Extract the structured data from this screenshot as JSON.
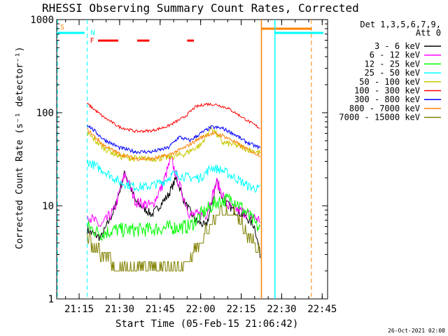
{
  "chart_data": {
    "type": "line",
    "title": "RHESSI Observing Summary Count Rates, Corrected",
    "xlabel": "Start Time (05-Feb-15 21:06:42)",
    "ylabel": "Corrected Count Rate (s⁻¹ detector⁻¹)",
    "y_scale": "log",
    "ylim": [
      1,
      1000
    ],
    "xlim": [
      "21:06:42",
      "22:47:00"
    ],
    "x_ticks": [
      "21:15",
      "21:30",
      "21:45",
      "22:00",
      "22:15",
      "22:30",
      "22:45"
    ],
    "y_ticks": [
      "1",
      "10",
      "100",
      "1000"
    ],
    "legend_header": [
      "Det 1,3,5,6,7,9,",
      "Att 0"
    ],
    "legend_position": "top-right",
    "footer": "26-Oct-2021 02:08",
    "flag_labels": {
      "saa": "S",
      "night": "N",
      "flare": "F"
    },
    "data_start": "21:18:00",
    "data_end": "22:22:00",
    "series": [
      {
        "name": "3 - 6 keV",
        "color": "#000000",
        "points": [
          [
            0,
            5.5
          ],
          [
            5,
            4.5
          ],
          [
            10,
            9
          ],
          [
            14,
            23
          ],
          [
            18,
            11
          ],
          [
            24,
            8
          ],
          [
            30,
            13
          ],
          [
            33,
            20
          ],
          [
            36,
            11
          ],
          [
            40,
            7
          ],
          [
            44,
            6
          ],
          [
            46,
            10
          ],
          [
            48,
            19
          ],
          [
            50,
            12
          ],
          [
            54,
            9
          ],
          [
            58,
            8
          ],
          [
            62,
            6
          ],
          [
            64,
            3
          ]
        ]
      },
      {
        "name": "6 - 12 keV",
        "color": "#ff00ff",
        "points": [
          [
            0,
            8
          ],
          [
            5,
            6
          ],
          [
            10,
            9
          ],
          [
            14,
            22
          ],
          [
            18,
            11
          ],
          [
            24,
            10
          ],
          [
            28,
            17
          ],
          [
            31,
            32
          ],
          [
            34,
            17
          ],
          [
            38,
            8
          ],
          [
            44,
            8
          ],
          [
            48,
            18
          ],
          [
            52,
            10
          ],
          [
            56,
            9
          ],
          [
            60,
            8
          ],
          [
            64,
            7
          ]
        ]
      },
      {
        "name": "12 - 25 keV",
        "color": "#00ff00",
        "points": [
          [
            0,
            6
          ],
          [
            5,
            5
          ],
          [
            10,
            5.5
          ],
          [
            20,
            5.5
          ],
          [
            30,
            5.8
          ],
          [
            38,
            6
          ],
          [
            42,
            8
          ],
          [
            48,
            11
          ],
          [
            54,
            12
          ],
          [
            58,
            9
          ],
          [
            62,
            6.5
          ],
          [
            64,
            5.5
          ]
        ]
      },
      {
        "name": "25 - 50 keV",
        "color": "#00ffff",
        "points": [
          [
            0,
            30
          ],
          [
            6,
            24
          ],
          [
            12,
            18
          ],
          [
            18,
            16
          ],
          [
            22,
            16
          ],
          [
            28,
            18
          ],
          [
            32,
            22
          ],
          [
            38,
            20
          ],
          [
            42,
            20
          ],
          [
            46,
            26
          ],
          [
            50,
            24
          ],
          [
            56,
            19
          ],
          [
            60,
            16
          ],
          [
            64,
            15
          ]
        ]
      },
      {
        "name": "50 - 100 keV",
        "color": "#c8c800",
        "points": [
          [
            0,
            60
          ],
          [
            6,
            42
          ],
          [
            12,
            34
          ],
          [
            18,
            32
          ],
          [
            24,
            32
          ],
          [
            30,
            33
          ],
          [
            36,
            36
          ],
          [
            42,
            45
          ],
          [
            46,
            70
          ],
          [
            50,
            48
          ],
          [
            56,
            44
          ],
          [
            60,
            40
          ],
          [
            64,
            37
          ]
        ]
      },
      {
        "name": "100 - 300 keV",
        "color": "#ff0000",
        "points": [
          [
            0,
            125
          ],
          [
            6,
            90
          ],
          [
            12,
            70
          ],
          [
            18,
            63
          ],
          [
            24,
            64
          ],
          [
            30,
            72
          ],
          [
            36,
            90
          ],
          [
            40,
            115
          ],
          [
            44,
            124
          ],
          [
            48,
            122
          ],
          [
            52,
            112
          ],
          [
            56,
            95
          ],
          [
            60,
            80
          ],
          [
            64,
            68
          ]
        ]
      },
      {
        "name": "300 - 800 keV",
        "color": "#0000ff",
        "points": [
          [
            0,
            75
          ],
          [
            6,
            52
          ],
          [
            12,
            42
          ],
          [
            18,
            38
          ],
          [
            24,
            38
          ],
          [
            30,
            42
          ],
          [
            34,
            55
          ],
          [
            38,
            50
          ],
          [
            42,
            60
          ],
          [
            46,
            70
          ],
          [
            50,
            68
          ],
          [
            54,
            60
          ],
          [
            58,
            50
          ],
          [
            62,
            44
          ],
          [
            64,
            42
          ]
        ]
      },
      {
        "name": "800 - 7000 keV",
        "color": "#ff8000",
        "points": [
          [
            0,
            66
          ],
          [
            6,
            45
          ],
          [
            12,
            36
          ],
          [
            18,
            32
          ],
          [
            24,
            32
          ],
          [
            30,
            35
          ],
          [
            36,
            42
          ],
          [
            42,
            54
          ],
          [
            46,
            60
          ],
          [
            50,
            57
          ],
          [
            54,
            50
          ],
          [
            58,
            42
          ],
          [
            62,
            37
          ],
          [
            64,
            35
          ]
        ]
      },
      {
        "name": "7000 - 15000 keV",
        "color": "#808000",
        "points": [
          [
            0,
            4
          ],
          [
            6,
            2.5
          ],
          [
            12,
            2
          ],
          [
            18,
            2
          ],
          [
            24,
            2
          ],
          [
            30,
            2
          ],
          [
            36,
            2.2
          ],
          [
            40,
            3
          ],
          [
            44,
            5
          ],
          [
            48,
            7.5
          ],
          [
            52,
            8
          ],
          [
            56,
            7
          ],
          [
            60,
            4
          ],
          [
            64,
            3
          ]
        ]
      }
    ]
  }
}
